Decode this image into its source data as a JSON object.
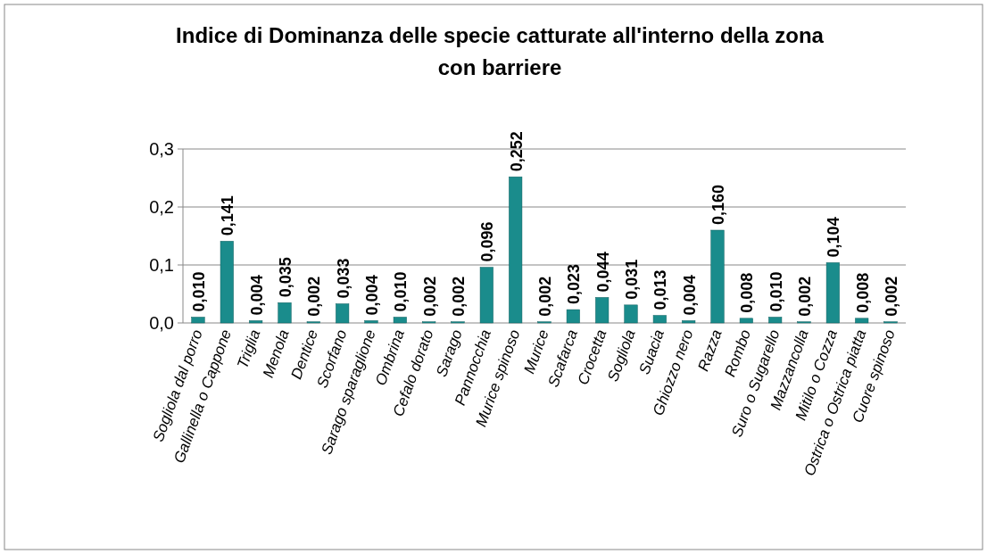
{
  "chart_data": {
    "type": "bar",
    "title": "Indice di Dominanza delle specie catturate all'interno della zona con barriere",
    "categories": [
      "Sogliola dal porro",
      "Gallinella o Cappone",
      "Triglia",
      "Menola",
      "Dentice",
      "Scorfano",
      "Sarago sparaglione",
      "Ombrina",
      "Cefalo dorato",
      "Sarago",
      "Pannocchia",
      "Murice spinoso",
      "Murice",
      "Scafarca",
      "Crocetta",
      "Sogliola",
      "Suacia",
      "Ghiozzo nero",
      "Razza",
      "Rombo",
      "Suro o Sugarello",
      "Mazzancolla",
      "Mitilo o Cozza",
      "Ostrica o Ostrica piatta",
      "Cuore spinoso"
    ],
    "values": [
      0.01,
      0.141,
      0.004,
      0.035,
      0.002,
      0.033,
      0.004,
      0.01,
      0.002,
      0.002,
      0.096,
      0.252,
      0.002,
      0.023,
      0.044,
      0.031,
      0.013,
      0.004,
      0.16,
      0.008,
      0.01,
      0.002,
      0.104,
      0.008,
      0.002
    ],
    "value_labels": [
      "0,010",
      "0,141",
      "0,004",
      "0,035",
      "0,002",
      "0,033",
      "0,004",
      "0,010",
      "0,002",
      "0,002",
      "0,096",
      "0,252",
      "0,002",
      "0,023",
      "0,044",
      "0,031",
      "0,013",
      "0,004",
      "0,160",
      "0,008",
      "0,010",
      "0,002",
      "0,104",
      "0,008",
      "0,002"
    ],
    "color": "#1a8c8c",
    "ylim": [
      0,
      0.3
    ],
    "yticks": [
      {
        "value": 0,
        "label": "0,0"
      },
      {
        "value": 0.1,
        "label": "0,1"
      },
      {
        "value": 0.2,
        "label": "0,2"
      },
      {
        "value": 0.3,
        "label": "0,3"
      }
    ],
    "grid": "y"
  }
}
